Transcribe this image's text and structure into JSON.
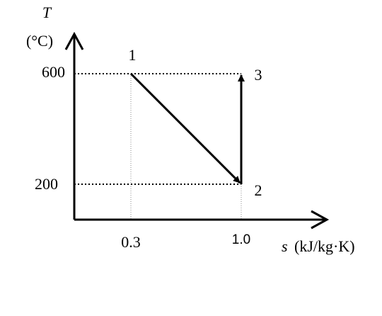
{
  "axes": {
    "y_label": "T",
    "y_unit": "(°C)",
    "x_label": "s",
    "x_unit": "(kJ/kg·K)",
    "y_ticks": [
      "600",
      "200"
    ],
    "x_ticks": [
      "0.3",
      "1.0"
    ]
  },
  "points": [
    "1",
    "2",
    "3"
  ]
}
